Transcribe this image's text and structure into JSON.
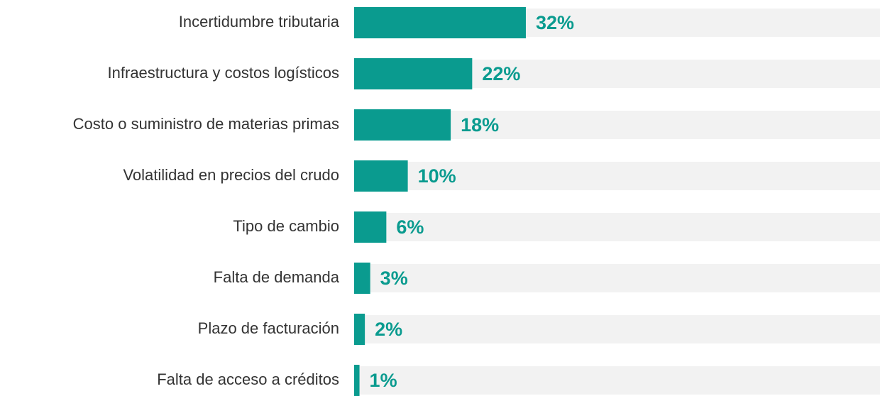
{
  "chart_data": {
    "type": "bar",
    "orientation": "horizontal",
    "categories": [
      "Incertidumbre tributaria",
      "Infraestructura y costos logísticos",
      "Costo o suministro de materias primas",
      "Volatilidad en precios del crudo",
      "Tipo de cambio",
      "Falta de demanda",
      "Plazo de facturación",
      "Falta de acceso a créditos"
    ],
    "values": [
      32,
      22,
      18,
      10,
      6,
      3,
      2,
      1
    ],
    "value_labels": [
      "32%",
      "22%",
      "18%",
      "10%",
      "6%",
      "3%",
      "2%",
      "1%"
    ],
    "color": "#0a9b8f",
    "track_color": "#f2f2f2",
    "xlim": [
      0,
      98
    ]
  }
}
